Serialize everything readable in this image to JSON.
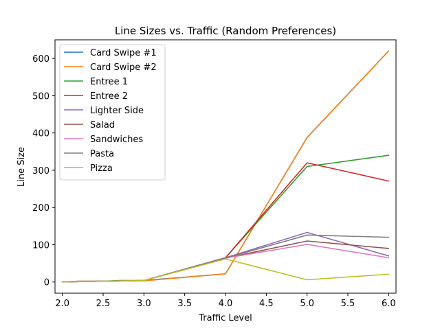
{
  "chart_data": {
    "type": "line",
    "title": "Line Sizes vs. Traffic (Random Preferences)",
    "xlabel": "Traffic Level",
    "ylabel": "Line Size",
    "xlim": [
      1.91,
      6.09
    ],
    "ylim": [
      -30,
      650
    ],
    "xticks": [
      2.0,
      2.5,
      3.0,
      3.5,
      4.0,
      4.5,
      5.0,
      5.5,
      6.0
    ],
    "xtick_labels": [
      "2.0",
      "2.5",
      "3.0",
      "3.5",
      "4.0",
      "4.5",
      "5.0",
      "5.5",
      "6.0"
    ],
    "yticks": [
      0,
      100,
      200,
      300,
      400,
      500,
      600
    ],
    "ytick_labels": [
      "0",
      "100",
      "200",
      "300",
      "400",
      "500",
      "600"
    ],
    "grid": false,
    "legend_position": "upper-left",
    "series": [
      {
        "name": "Card Swipe #1",
        "color": "#1f77b4",
        "points": [
          [
            2.0,
            0
          ],
          [
            2.2,
            2
          ],
          [
            2.5,
            2
          ],
          [
            2.7,
            4
          ],
          [
            3.0,
            4
          ],
          [
            4.0,
            22
          ],
          [
            5.0,
            388
          ],
          [
            6.0,
            620
          ]
        ]
      },
      {
        "name": "Card Swipe #2",
        "color": "#ff7f0e",
        "points": [
          [
            2.0,
            0
          ],
          [
            2.2,
            2
          ],
          [
            2.5,
            2
          ],
          [
            2.7,
            3
          ],
          [
            3.0,
            3
          ],
          [
            4.0,
            22
          ],
          [
            5.0,
            388
          ],
          [
            6.0,
            620
          ]
        ]
      },
      {
        "name": "Entree 1",
        "color": "#2ca02c",
        "points": [
          [
            2.0,
            0
          ],
          [
            2.2,
            1
          ],
          [
            2.5,
            2
          ],
          [
            2.8,
            3
          ],
          [
            3.0,
            4
          ],
          [
            4.0,
            65
          ],
          [
            5.0,
            310
          ],
          [
            6.0,
            340
          ]
        ]
      },
      {
        "name": "Entree 2",
        "color": "#d62728",
        "points": [
          [
            2.0,
            0
          ],
          [
            2.2,
            1
          ],
          [
            2.5,
            2
          ],
          [
            2.8,
            3
          ],
          [
            3.0,
            4
          ],
          [
            4.0,
            65
          ],
          [
            5.0,
            320
          ],
          [
            6.0,
            271
          ]
        ]
      },
      {
        "name": "Lighter Side",
        "color": "#9467bd",
        "points": [
          [
            2.0,
            0
          ],
          [
            2.2,
            1
          ],
          [
            2.5,
            2
          ],
          [
            2.8,
            3
          ],
          [
            3.0,
            4
          ],
          [
            4.0,
            65
          ],
          [
            5.0,
            133
          ],
          [
            6.0,
            70
          ]
        ]
      },
      {
        "name": "Salad",
        "color": "#8c564b",
        "points": [
          [
            2.0,
            0
          ],
          [
            2.2,
            1
          ],
          [
            2.5,
            2
          ],
          [
            2.8,
            3
          ],
          [
            3.0,
            4
          ],
          [
            4.0,
            64
          ],
          [
            5.0,
            110
          ],
          [
            6.0,
            90
          ]
        ]
      },
      {
        "name": "Sandwiches",
        "color": "#e377c2",
        "points": [
          [
            2.0,
            0
          ],
          [
            2.2,
            1
          ],
          [
            2.5,
            2
          ],
          [
            2.8,
            3
          ],
          [
            3.0,
            4
          ],
          [
            4.0,
            64
          ],
          [
            5.0,
            101
          ],
          [
            6.0,
            65
          ]
        ]
      },
      {
        "name": "Pasta",
        "color": "#7f7f7f",
        "points": [
          [
            2.0,
            0
          ],
          [
            2.2,
            1
          ],
          [
            2.5,
            2
          ],
          [
            2.8,
            3
          ],
          [
            3.0,
            4
          ],
          [
            4.0,
            64
          ],
          [
            5.0,
            126
          ],
          [
            6.0,
            120
          ]
        ]
      },
      {
        "name": "Pizza",
        "color": "#bcbd22",
        "points": [
          [
            2.0,
            0
          ],
          [
            2.2,
            1
          ],
          [
            2.5,
            2
          ],
          [
            2.8,
            3
          ],
          [
            3.0,
            4
          ],
          [
            4.0,
            62
          ],
          [
            5.0,
            6
          ],
          [
            6.0,
            21
          ]
        ]
      }
    ]
  }
}
